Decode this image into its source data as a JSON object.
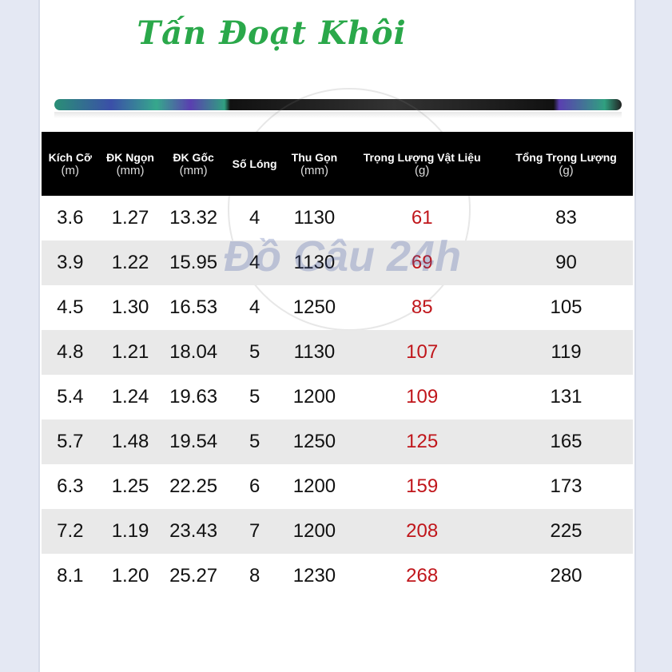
{
  "title": "Tấn Đoạt Khôi",
  "watermark": "Đồ Câu 24h",
  "colors": {
    "title": "#2aa84a",
    "material_weight": "#c0161b",
    "header_bg": "#000000"
  },
  "columns": [
    {
      "label": "Kích Cỡ",
      "unit": "(m)"
    },
    {
      "label": "ĐK Ngọn",
      "unit": "(mm)"
    },
    {
      "label": "ĐK Gốc",
      "unit": "(mm)"
    },
    {
      "label": "Số Lóng",
      "unit": ""
    },
    {
      "label": "Thu Gọn",
      "unit": "(mm)"
    },
    {
      "label": "Trọng Lượng Vật Liệu",
      "unit": "(g)"
    },
    {
      "label": "Tổng Trọng Lượng",
      "unit": "(g)"
    }
  ],
  "rows": [
    [
      "3.6",
      "1.27",
      "13.32",
      "4",
      "1130",
      "61",
      "83"
    ],
    [
      "3.9",
      "1.22",
      "15.95",
      "4",
      "1130",
      "69",
      "90"
    ],
    [
      "4.5",
      "1.30",
      "16.53",
      "4",
      "1250",
      "85",
      "105"
    ],
    [
      "4.8",
      "1.21",
      "18.04",
      "5",
      "1130",
      "107",
      "119"
    ],
    [
      "5.4",
      "1.24",
      "19.63",
      "5",
      "1200",
      "109",
      "131"
    ],
    [
      "5.7",
      "1.48",
      "19.54",
      "5",
      "1250",
      "125",
      "165"
    ],
    [
      "6.3",
      "1.25",
      "22.25",
      "6",
      "1200",
      "159",
      "173"
    ],
    [
      "7.2",
      "1.19",
      "23.43",
      "7",
      "1200",
      "208",
      "225"
    ],
    [
      "8.1",
      "1.20",
      "25.27",
      "8",
      "1230",
      "268",
      "280"
    ]
  ]
}
